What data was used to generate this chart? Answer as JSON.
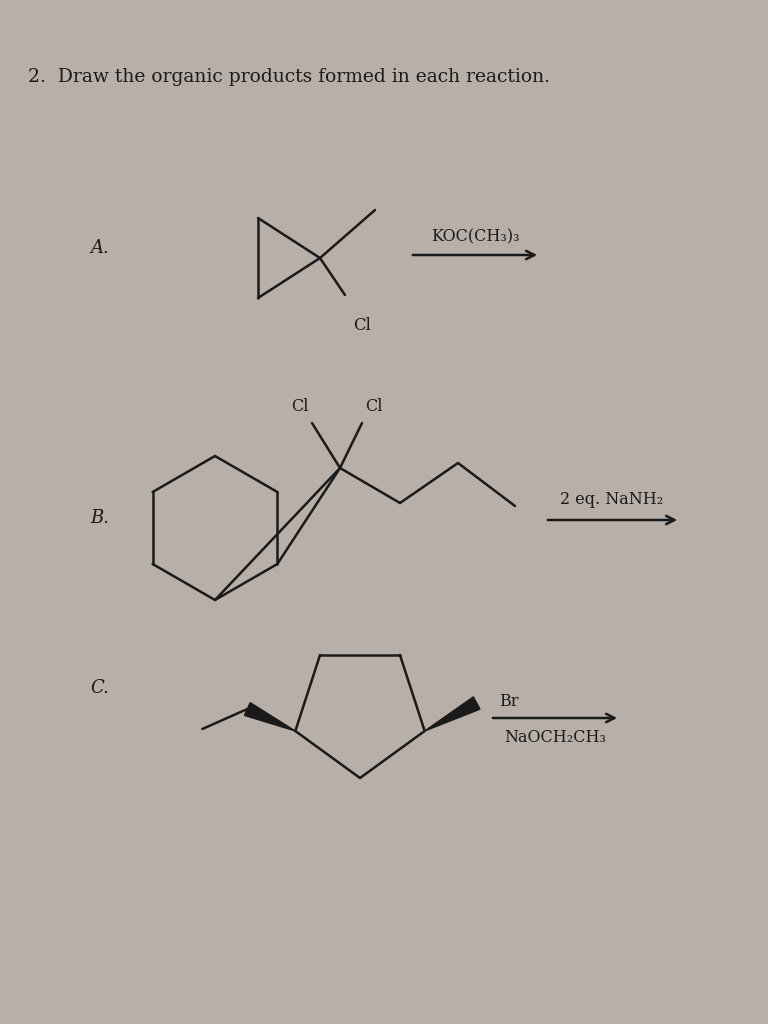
{
  "title": "2.  Draw the organic products formed in each reaction.",
  "bg_color": "#b8b0a8",
  "line_color": "#1a1a1a",
  "title_fontsize": 13.5,
  "label_fontsize": 13,
  "reagent_fontsize": 11.5,
  "label_A": "A.",
  "label_B": "B.",
  "label_C": "C.",
  "reagent_A": "KOC(CH₃)₃",
  "reagent_B": "2 eq. NaNH₂",
  "reagent_C": "NaOCH₂CH₃"
}
